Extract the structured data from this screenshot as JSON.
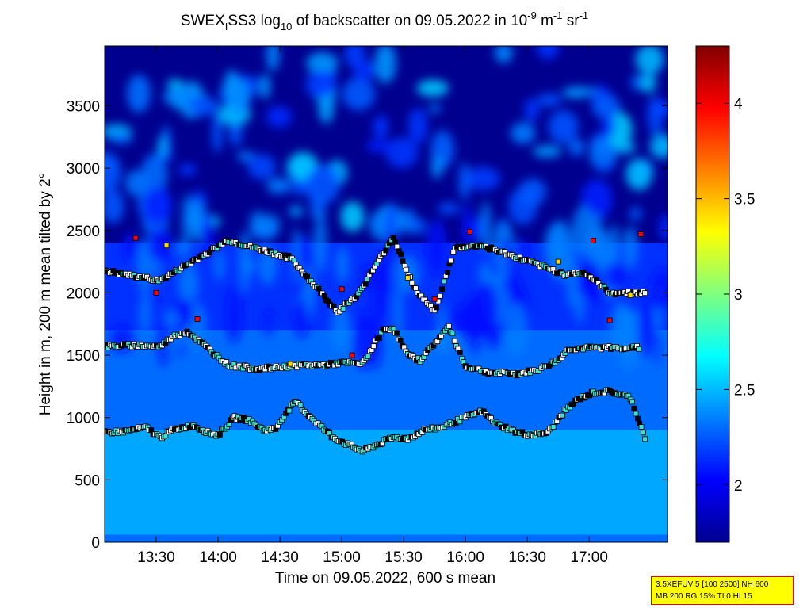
{
  "chart_data": {
    "type": "heatmap",
    "title_parts": {
      "prefix": "SWEX",
      "sub1": "I",
      "mid": "SS3 log",
      "sub2": "10",
      "rest": " of backscatter on 09.05.2022 in 10",
      "sup1": "-9",
      "unit1": " m",
      "sup2": "-1",
      "unit2": " sr",
      "sup3": "-1"
    },
    "xlabel": "Time on 09.05.2022, 600 s mean",
    "ylabel": "Height in m, 200 m mean tilted by 2°",
    "x_ticks": [
      "13:30",
      "14:00",
      "14:30",
      "15:00",
      "15:30",
      "16:00",
      "16:30",
      "17:00"
    ],
    "x_tick_minutes": [
      810,
      840,
      870,
      900,
      930,
      960,
      990,
      1020
    ],
    "xlim_minutes": [
      785,
      1058
    ],
    "y_ticks": [
      0,
      500,
      1000,
      1500,
      2000,
      2500,
      3000,
      3500
    ],
    "ylim": [
      0,
      3980
    ],
    "colorbar": {
      "ticks": [
        2,
        2.5,
        3,
        3.5,
        4
      ],
      "ticklabels": [
        "2",
        "2.5",
        "3",
        "3.5",
        "4"
      ],
      "range": [
        1.7,
        4.3
      ]
    },
    "layers": [
      {
        "name": "",
        "level": 2.45,
        "bottom_m": 0,
        "top_m": 900
      },
      {
        "name": "",
        "level": 2.3,
        "bottom_m": 900,
        "top_m": 1700
      },
      {
        "name": "",
        "level": 2.15,
        "bottom_m": 1700,
        "top_m": 2400
      },
      {
        "name": "",
        "level": 1.7,
        "bottom_m": 2400,
        "top_m": 3980
      }
    ],
    "markers": {
      "lower_layer": [
        [
          785,
          880
        ],
        [
          795,
          890
        ],
        [
          805,
          920
        ],
        [
          812,
          840
        ],
        [
          818,
          900
        ],
        [
          828,
          940
        ],
        [
          835,
          880
        ],
        [
          840,
          860
        ],
        [
          848,
          1000
        ],
        [
          855,
          980
        ],
        [
          862,
          900
        ],
        [
          868,
          910
        ],
        [
          872,
          1020
        ],
        [
          878,
          1130
        ],
        [
          882,
          1050
        ],
        [
          895,
          850
        ],
        [
          902,
          790
        ],
        [
          910,
          730
        ],
        [
          925,
          840
        ],
        [
          932,
          830
        ],
        [
          940,
          900
        ],
        [
          948,
          920
        ],
        [
          960,
          1000
        ],
        [
          968,
          1050
        ],
        [
          975,
          950
        ],
        [
          985,
          880
        ],
        [
          992,
          860
        ],
        [
          1000,
          880
        ],
        [
          1008,
          1050
        ],
        [
          1015,
          1150
        ],
        [
          1022,
          1200
        ],
        [
          1030,
          1210
        ],
        [
          1040,
          1160
        ],
        [
          1048,
          800
        ]
      ],
      "middle_layer": [
        [
          785,
          1570
        ],
        [
          800,
          1580
        ],
        [
          812,
          1570
        ],
        [
          818,
          1650
        ],
        [
          825,
          1690
        ],
        [
          845,
          1420
        ],
        [
          860,
          1390
        ],
        [
          882,
          1420
        ],
        [
          892,
          1420
        ],
        [
          900,
          1440
        ],
        [
          910,
          1430
        ],
        [
          920,
          1700
        ],
        [
          925,
          1720
        ],
        [
          932,
          1500
        ],
        [
          938,
          1460
        ],
        [
          952,
          1730
        ],
        [
          960,
          1410
        ],
        [
          972,
          1360
        ],
        [
          985,
          1350
        ],
        [
          995,
          1380
        ],
        [
          1005,
          1460
        ],
        [
          1010,
          1550
        ],
        [
          1025,
          1560
        ],
        [
          1045,
          1560
        ]
      ],
      "upper_layer": [
        [
          785,
          2180
        ],
        [
          790,
          2160
        ],
        [
          812,
          2100
        ],
        [
          845,
          2420
        ],
        [
          860,
          2350
        ],
        [
          875,
          2280
        ],
        [
          898,
          1850
        ],
        [
          908,
          1990
        ],
        [
          925,
          2450
        ],
        [
          935,
          2040
        ],
        [
          945,
          1850
        ],
        [
          955,
          2360
        ],
        [
          968,
          2380
        ],
        [
          1008,
          2150
        ],
        [
          1018,
          2160
        ],
        [
          1030,
          2000
        ],
        [
          1048,
          2000
        ]
      ],
      "hot_points": [
        [
          800,
          2440
        ],
        [
          815,
          2380
        ],
        [
          810,
          2000
        ],
        [
          830,
          1790
        ],
        [
          875,
          1430
        ],
        [
          900,
          2030
        ],
        [
          905,
          1500
        ],
        [
          932,
          2120
        ],
        [
          945,
          1950
        ],
        [
          962,
          2490
        ],
        [
          1005,
          2250
        ],
        [
          1022,
          2420
        ],
        [
          1030,
          1780
        ],
        [
          1040,
          1980
        ],
        [
          1045,
          2470
        ]
      ]
    }
  },
  "info_box": {
    "line1": "3.5XEFUV 5 [100 2500] NH 600",
    "line2": "MB 200 RG 15% TI 0 HI 15"
  }
}
